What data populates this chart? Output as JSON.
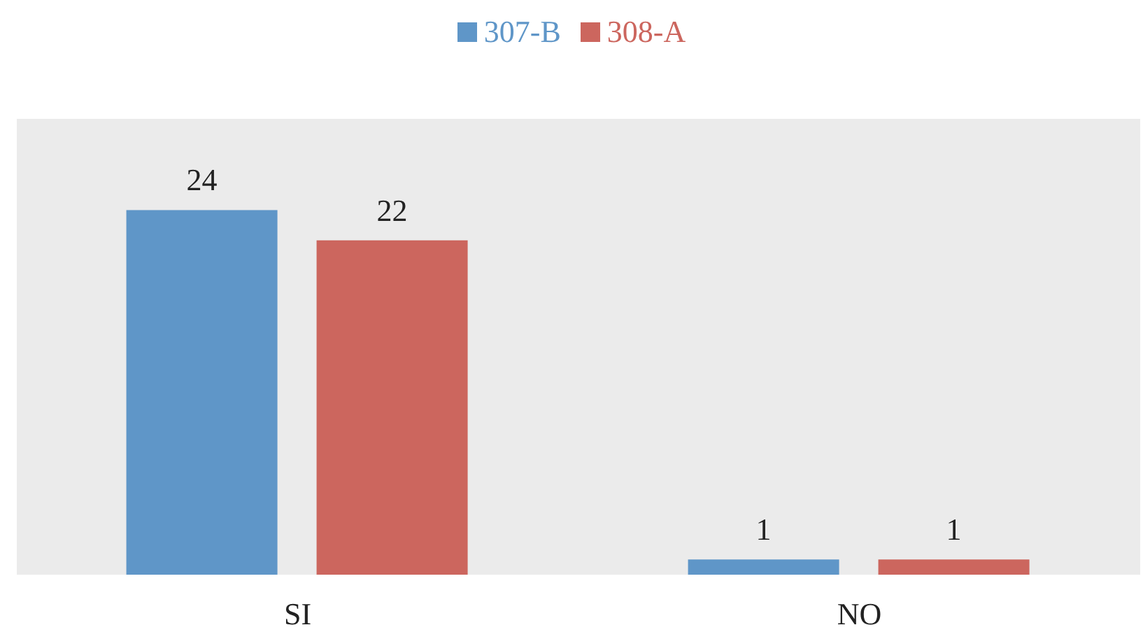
{
  "chart_data": {
    "type": "bar",
    "categories": [
      "SI",
      "NO"
    ],
    "series": [
      {
        "name": "307-B",
        "color": "#5f96c8",
        "values": [
          24,
          1
        ]
      },
      {
        "name": "308-A",
        "color": "#cc665e",
        "values": [
          22,
          1
        ]
      }
    ],
    "data_labels": true,
    "legend": "top",
    "grid": false
  }
}
